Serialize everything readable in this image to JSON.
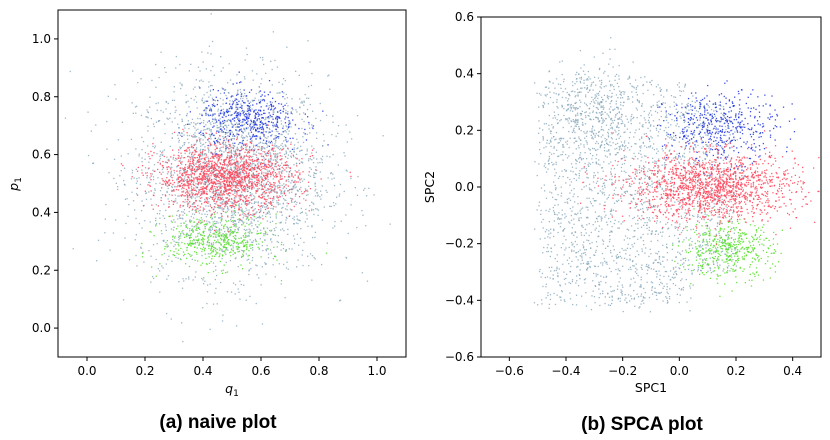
{
  "chart_data": [
    {
      "type": "scatter",
      "caption": "(a) naive plot",
      "xlabel_base": "q",
      "xlabel_sub": "1",
      "ylabel_base": "p",
      "ylabel_sub": "1",
      "xlim": [
        -0.1,
        1.1
      ],
      "ylim": [
        -0.1,
        1.1
      ],
      "xticks": [
        0.0,
        0.2,
        0.4,
        0.6,
        0.8,
        1.0
      ],
      "yticks": [
        0.0,
        0.2,
        0.4,
        0.6,
        0.8,
        1.0
      ],
      "grid": false,
      "colors": {
        "background": "#7fa2b6",
        "blue": "#1f33e0",
        "green": "#56e02a",
        "red": "#ff4459"
      },
      "clusters": [
        {
          "color": "background",
          "shape": "ellipse",
          "cx": 0.5,
          "cy": 0.53,
          "sx": 0.165,
          "sy": 0.17,
          "count": 2600
        },
        {
          "color": "blue",
          "shape": "ellipse",
          "cx": 0.56,
          "cy": 0.72,
          "sx": 0.085,
          "sy": 0.05,
          "count": 450
        },
        {
          "color": "green",
          "shape": "ellipse",
          "cx": 0.44,
          "cy": 0.3,
          "sx": 0.09,
          "sy": 0.045,
          "count": 450
        },
        {
          "color": "red",
          "shape": "ellipse",
          "cx": 0.48,
          "cy": 0.52,
          "sx": 0.12,
          "sy": 0.055,
          "count": 1500
        }
      ]
    },
    {
      "type": "scatter",
      "caption": "(b) SPCA plot",
      "xlabel": "SPC1",
      "ylabel": "SPC2",
      "xlim": [
        -0.7,
        0.5
      ],
      "ylim": [
        -0.6,
        0.6
      ],
      "xticks": [
        -0.6,
        -0.4,
        -0.2,
        0.0,
        0.2,
        0.4
      ],
      "yticks": [
        -0.6,
        -0.4,
        -0.2,
        0.0,
        0.2,
        0.4,
        0.6
      ],
      "grid": false,
      "colors": {
        "background": "#7fa2b6",
        "blue": "#1f33e0",
        "green": "#56e02a",
        "red": "#ff4459"
      },
      "clusters": [
        {
          "color": "background",
          "shape": "box",
          "x": [
            -0.48,
            0.2
          ],
          "y": [
            -0.42,
            0.38
          ],
          "count": 2200
        },
        {
          "color": "background",
          "shape": "ellipse",
          "cx": -0.3,
          "cy": 0.25,
          "sx": 0.07,
          "sy": 0.1,
          "count": 300
        },
        {
          "color": "blue",
          "shape": "ellipse",
          "cx": 0.15,
          "cy": 0.21,
          "sx": 0.1,
          "sy": 0.06,
          "count": 450
        },
        {
          "color": "green",
          "shape": "ellipse",
          "cx": 0.17,
          "cy": -0.22,
          "sx": 0.08,
          "sy": 0.05,
          "count": 450
        },
        {
          "color": "red",
          "shape": "ellipse",
          "cx": 0.12,
          "cy": 0.0,
          "sx": 0.15,
          "sy": 0.06,
          "count": 1500
        }
      ]
    }
  ]
}
